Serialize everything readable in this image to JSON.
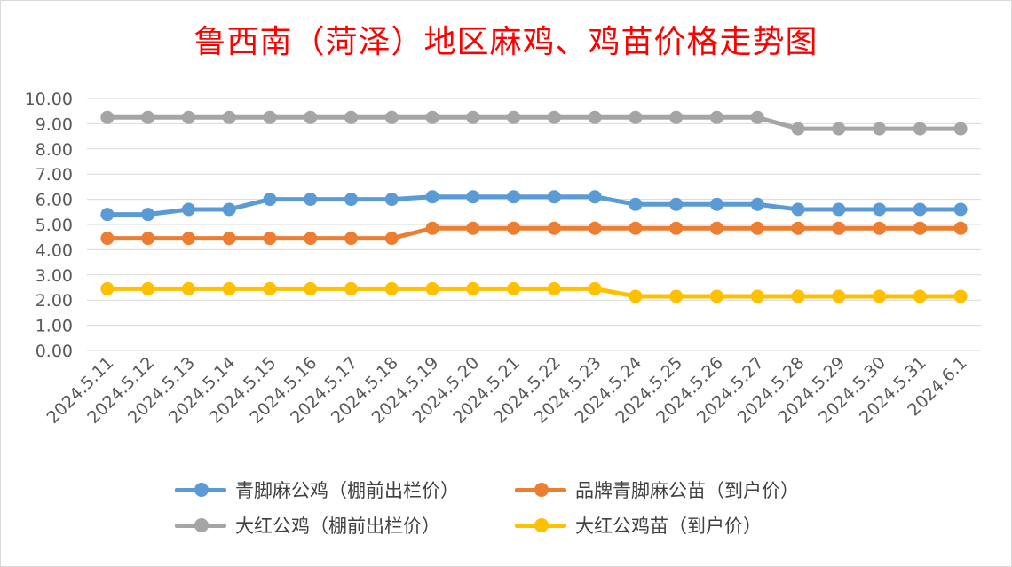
{
  "chart_data": {
    "type": "line",
    "title": "鲁西南（菏泽）地区麻鸡、鸡苗价格走势图",
    "xlabel": "",
    "ylabel": "",
    "ylim": [
      0,
      10
    ],
    "yticks": [
      "0.00",
      "1.00",
      "2.00",
      "3.00",
      "4.00",
      "5.00",
      "6.00",
      "7.00",
      "8.00",
      "9.00",
      "10.00"
    ],
    "grid": true,
    "legend_position": "bottom",
    "categories": [
      "2024.5.11",
      "2024.5.12",
      "2024.5.13",
      "2024.5.14",
      "2024.5.15",
      "2024.5.16",
      "2024.5.17",
      "2024.5.18",
      "2024.5.19",
      "2024.5.20",
      "2024.5.21",
      "2024.5.22",
      "2024.5.23",
      "2024.5.24",
      "2024.5.25",
      "2024.5.26",
      "2024.5.27",
      "2024.5.28",
      "2024.5.29",
      "2024.5.30",
      "2024.5.31",
      "2024.6.1"
    ],
    "series": [
      {
        "name": "青脚麻公鸡（棚前出栏价）",
        "color": "#5b9bd5",
        "values": [
          5.4,
          5.4,
          5.6,
          5.6,
          6.0,
          6.0,
          6.0,
          6.0,
          6.1,
          6.1,
          6.1,
          6.1,
          6.1,
          5.8,
          5.8,
          5.8,
          5.8,
          5.6,
          5.6,
          5.6,
          5.6,
          5.6
        ]
      },
      {
        "name": "品牌青脚麻公苗（到户价）",
        "color": "#ed7d31",
        "values": [
          4.45,
          4.45,
          4.45,
          4.45,
          4.45,
          4.45,
          4.45,
          4.45,
          4.85,
          4.85,
          4.85,
          4.85,
          4.85,
          4.85,
          4.85,
          4.85,
          4.85,
          4.85,
          4.85,
          4.85,
          4.85,
          4.85
        ]
      },
      {
        "name": "大红公鸡（棚前出栏价）",
        "color": "#a5a5a5",
        "values": [
          9.25,
          9.25,
          9.25,
          9.25,
          9.25,
          9.25,
          9.25,
          9.25,
          9.25,
          9.25,
          9.25,
          9.25,
          9.25,
          9.25,
          9.25,
          9.25,
          9.25,
          8.8,
          8.8,
          8.8,
          8.8,
          8.8
        ]
      },
      {
        "name": "大红公鸡苗（到户价）",
        "color": "#ffc000",
        "values": [
          2.45,
          2.45,
          2.45,
          2.45,
          2.45,
          2.45,
          2.45,
          2.45,
          2.45,
          2.45,
          2.45,
          2.45,
          2.45,
          2.15,
          2.15,
          2.15,
          2.15,
          2.15,
          2.15,
          2.15,
          2.15,
          2.15
        ]
      }
    ]
  }
}
